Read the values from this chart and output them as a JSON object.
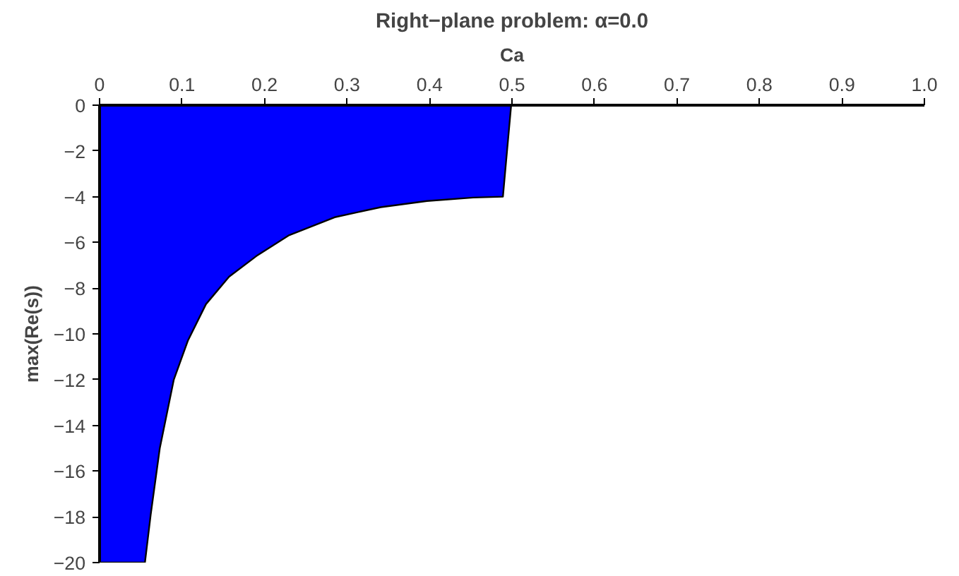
{
  "chart_data": {
    "type": "area",
    "title": "Right−plane problem: α=0.0",
    "xlabel": "Ca",
    "ylabel": "max(Re(s))",
    "x": [
      0,
      0.055,
      0.062,
      0.073,
      0.09,
      0.107,
      0.129,
      0.157,
      0.19,
      0.229,
      0.285,
      0.341,
      0.397,
      0.453,
      0.489,
      0.499
    ],
    "series": [
      {
        "color": "#0000ff",
        "values": [
          -20,
          -20,
          -17.9,
          -15.0,
          -12.0,
          -10.3,
          -8.7,
          -7.5,
          -6.6,
          -5.7,
          -4.9,
          -4.46,
          -4.19,
          -4.04,
          -4.0,
          0
        ]
      }
    ],
    "xlim": [
      0,
      1.0
    ],
    "ylim": [
      -20,
      0
    ],
    "xticks": [
      0,
      0.1,
      0.2,
      0.3,
      0.4,
      0.5,
      0.6,
      0.7,
      0.8,
      0.9,
      {
        "value": 1.0,
        "label": "1.0"
      }
    ],
    "yticks": [
      -20,
      -18,
      -16,
      -14,
      -12,
      -10,
      -8,
      -6,
      -4,
      -2,
      0
    ],
    "grid": false
  }
}
